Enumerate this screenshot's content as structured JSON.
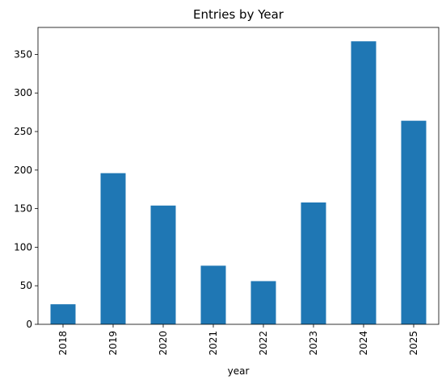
{
  "chart_data": {
    "type": "bar",
    "title": "Entries by Year",
    "xlabel": "year",
    "ylabel": "",
    "categories": [
      "2018",
      "2019",
      "2020",
      "2021",
      "2022",
      "2023",
      "2024",
      "2025"
    ],
    "values": [
      26,
      196,
      154,
      76,
      56,
      158,
      367,
      264
    ],
    "ylim": [
      0,
      385
    ],
    "yticks": [
      0,
      50,
      100,
      150,
      200,
      250,
      300,
      350
    ],
    "bar_color": "#1f77b4",
    "grid": false
  }
}
